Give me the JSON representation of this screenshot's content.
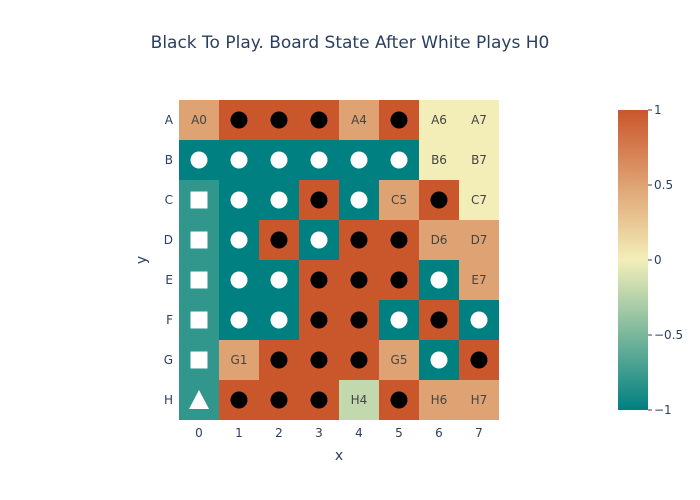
{
  "chart_data": {
    "type": "heatmap",
    "title": "Black To Play. Board State After White Plays H0",
    "xlabel": "x",
    "ylabel": "y",
    "x": [
      "0",
      "1",
      "2",
      "3",
      "4",
      "5",
      "6",
      "7"
    ],
    "y": [
      "A",
      "B",
      "C",
      "D",
      "E",
      "F",
      "G",
      "H"
    ],
    "colorscale": [
      "#008080",
      "#f3eeb8",
      "#ca562c"
    ],
    "colorbar": {
      "range": [
        -1,
        1
      ],
      "ticks": [
        "1",
        "0.5",
        "0",
        "−0.5",
        "−1"
      ]
    },
    "z": [
      [
        0.5,
        1,
        1,
        1,
        0.5,
        1,
        0,
        0
      ],
      [
        -1,
        -1,
        -1,
        -1,
        -1,
        -1,
        0,
        0
      ],
      [
        -0.8,
        -1,
        -1,
        1,
        -1,
        0.5,
        1,
        0
      ],
      [
        -0.8,
        -1,
        1,
        -1,
        1,
        1,
        0.5,
        0.5
      ],
      [
        -0.8,
        -1,
        -1,
        1,
        1,
        1,
        -1,
        0.5
      ],
      [
        -0.8,
        -1,
        -1,
        1,
        1,
        -1,
        1,
        -1
      ],
      [
        -0.8,
        0.5,
        1,
        1,
        1,
        0.5,
        -1,
        1
      ],
      [
        -0.8,
        1,
        1,
        1,
        -0.2,
        1,
        0.5,
        0.5
      ]
    ],
    "stones": [
      [
        "",
        "black",
        "black",
        "black",
        "",
        "black",
        "",
        ""
      ],
      [
        "white",
        "white",
        "white",
        "white",
        "white",
        "white",
        "",
        ""
      ],
      [
        "square",
        "white",
        "white",
        "black",
        "white",
        "",
        "black",
        ""
      ],
      [
        "square",
        "white",
        "black",
        "white",
        "black",
        "black",
        "",
        ""
      ],
      [
        "square",
        "white",
        "white",
        "black",
        "black",
        "black",
        "white",
        ""
      ],
      [
        "square",
        "white",
        "white",
        "black",
        "black",
        "white",
        "black",
        "white"
      ],
      [
        "square",
        "",
        "black",
        "black",
        "black",
        "",
        "white",
        "black"
      ],
      [
        "triangle",
        "black",
        "black",
        "black",
        "",
        "black",
        "",
        ""
      ]
    ],
    "labels": [
      [
        "A0",
        "",
        "",
        "",
        "A4",
        "",
        "A6",
        "A7"
      ],
      [
        "",
        "",
        "",
        "",
        "",
        "",
        "B6",
        "B7"
      ],
      [
        "",
        "",
        "",
        "",
        "",
        "C5",
        "",
        "C7"
      ],
      [
        "",
        "",
        "",
        "",
        "",
        "",
        "D6",
        "D7"
      ],
      [
        "",
        "",
        "",
        "",
        "",
        "",
        "",
        "E7"
      ],
      [
        "",
        "",
        "",
        "",
        "",
        "",
        "",
        ""
      ],
      [
        "",
        "G1",
        "",
        "",
        "",
        "G5",
        "",
        ""
      ],
      [
        "",
        "",
        "",
        "",
        "H4",
        "",
        "H6",
        "H7"
      ]
    ]
  }
}
